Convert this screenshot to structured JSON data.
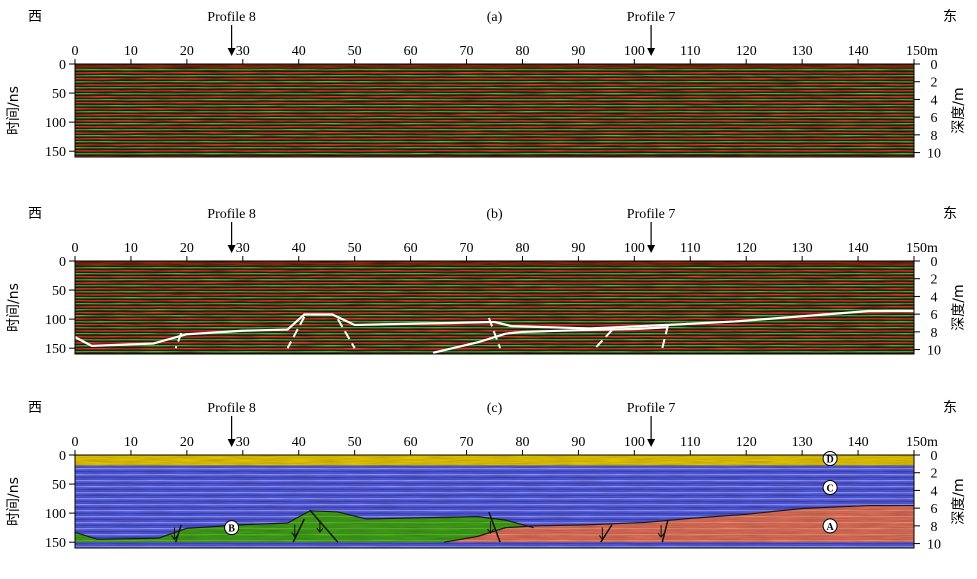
{
  "direction_labels": {
    "west": "西",
    "east": "东"
  },
  "profiles": [
    {
      "label": "Profile 8",
      "position_m": 28
    },
    {
      "label": "Profile 7",
      "position_m": 103
    }
  ],
  "axes": {
    "distance_ticks": [
      "0",
      "10",
      "20",
      "30",
      "40",
      "50",
      "60",
      "70",
      "80",
      "90",
      "100",
      "110",
      "120",
      "130",
      "140",
      "150m"
    ],
    "distance_range_m": [
      0,
      150
    ],
    "time_label": "时间/ns",
    "time_ticks": [
      "0",
      "50",
      "100",
      "150"
    ],
    "time_range_ns": [
      0,
      160
    ],
    "depth_label": "深度/m",
    "depth_ticks": [
      "0",
      "2",
      "4",
      "6",
      "8",
      "10"
    ],
    "depth_range_m": [
      0,
      10.5
    ]
  },
  "panels": [
    {
      "id": "a",
      "label": "(a)",
      "type": "raw radar profile"
    },
    {
      "id": "b",
      "label": "(b)",
      "type": "interpreted radar profile",
      "horizons": [
        {
          "name": "upper",
          "points": [
            [
              0,
              131
            ],
            [
              3,
              146
            ],
            [
              14,
              142
            ],
            [
              20,
              126
            ],
            [
              30,
              120
            ],
            [
              38,
              118
            ],
            [
              41,
              92
            ],
            [
              46,
              92
            ],
            [
              50,
              110
            ],
            [
              60,
              108
            ],
            [
              70,
              106
            ],
            [
              75,
              105
            ],
            [
              78,
              112
            ],
            [
              92,
              116
            ],
            [
              108,
              109
            ],
            [
              118,
              104
            ],
            [
              130,
              95
            ],
            [
              142,
              86
            ],
            [
              150,
              86
            ]
          ]
        },
        {
          "name": "lower",
          "points": [
            [
              64,
              158
            ],
            [
              72,
              140
            ],
            [
              77,
              125
            ],
            [
              80,
              122
            ],
            [
              90,
              119
            ],
            [
              100,
              117
            ],
            [
              106,
              114
            ]
          ]
        }
      ],
      "faults": [
        {
          "top": [
            19,
            124
          ],
          "bottom": [
            18,
            150
          ]
        },
        {
          "top": [
            41,
            96
          ],
          "bottom": [
            38,
            150
          ]
        },
        {
          "top": [
            47,
            100
          ],
          "bottom": [
            50,
            150
          ]
        },
        {
          "top": [
            74,
            98
          ],
          "bottom": [
            76,
            150
          ]
        },
        {
          "top": [
            96,
            119
          ],
          "bottom": [
            93,
            150
          ]
        },
        {
          "top": [
            106,
            111
          ],
          "bottom": [
            105,
            150
          ]
        }
      ]
    },
    {
      "id": "c",
      "label": "(c)",
      "type": "interpreted stratigraphic units",
      "units": [
        {
          "id": "D",
          "label": "D",
          "color": "#e0c200",
          "label_pos": [
            135,
            6
          ]
        },
        {
          "id": "C",
          "label": "C",
          "color": "#5558d8",
          "label_pos": [
            135,
            56
          ]
        },
        {
          "id": "B",
          "label": "B",
          "color": "#3f9a18",
          "label_pos": [
            28,
            125
          ]
        },
        {
          "id": "A",
          "label": "A",
          "color": "#d86a55",
          "label_pos": [
            135,
            122
          ]
        }
      ],
      "faults": [
        {
          "top": [
            19,
            120
          ],
          "bottom": [
            18,
            150
          ]
        },
        {
          "top": [
            41,
            110
          ],
          "bottom": [
            39,
            150
          ]
        },
        {
          "top": [
            42,
            95
          ],
          "bottom": [
            47,
            150
          ]
        },
        {
          "top": [
            74,
            98
          ],
          "bottom": [
            76,
            150
          ]
        },
        {
          "top": [
            96,
            120
          ],
          "bottom": [
            94,
            150
          ]
        },
        {
          "top": [
            106,
            112
          ],
          "bottom": [
            105,
            150
          ]
        }
      ]
    }
  ],
  "colors": {
    "radar_base": "#3a1f0e",
    "radar_red": "#e8352a",
    "radar_green": "#3fcf3a",
    "horizon": "#ffffff",
    "top_band": "#8a2d12"
  }
}
